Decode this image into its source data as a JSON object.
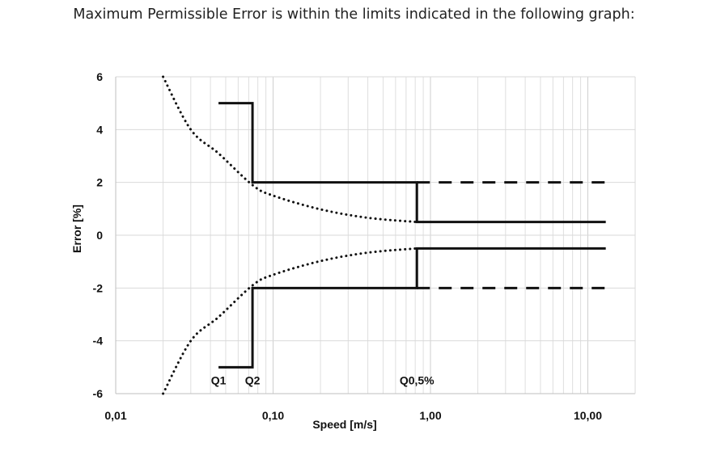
{
  "caption": "Maximum Permissible Error is within the limits indicated in the following graph:",
  "chart_data": {
    "type": "line",
    "title": "",
    "xlabel": "Speed [m/s]",
    "ylabel": "Error [%]",
    "x_scale": "log",
    "xlim": [
      0.01,
      15
    ],
    "ylim": [
      -6,
      6
    ],
    "x_ticks": [
      {
        "value": 0.01,
        "label": "0,01"
      },
      {
        "value": 0.1,
        "label": "0,10"
      },
      {
        "value": 1,
        "label": "1,00"
      },
      {
        "value": 10,
        "label": "10,00"
      }
    ],
    "y_ticks": [
      {
        "value": 6,
        "label": "6"
      },
      {
        "value": 4,
        "label": "4"
      },
      {
        "value": 2,
        "label": "2"
      },
      {
        "value": 0,
        "label": "0"
      },
      {
        "value": -2,
        "label": "-2"
      },
      {
        "value": -4,
        "label": "-4"
      },
      {
        "value": -6,
        "label": "-6"
      }
    ],
    "grid": true,
    "series": [
      {
        "style": "solid",
        "x": [
          0.045,
          0.074,
          0.074,
          0.82,
          0.82,
          13
        ],
        "y": [
          5,
          5,
          2,
          2,
          0.5,
          0.5
        ]
      },
      {
        "style": "solid",
        "x": [
          0.045,
          0.074,
          0.074,
          0.82,
          0.82,
          13
        ],
        "y": [
          -5,
          -5,
          -2,
          -2,
          -0.5,
          -0.5
        ]
      },
      {
        "style": "dashed",
        "x": [
          0.82,
          13
        ],
        "y": [
          2,
          2
        ]
      },
      {
        "style": "dashed",
        "x": [
          0.82,
          13
        ],
        "y": [
          -2,
          -2
        ]
      },
      {
        "style": "dotted",
        "x": [
          0.02,
          0.03,
          0.045,
          0.074,
          0.1,
          0.2,
          0.4,
          0.82
        ],
        "y": [
          6,
          4,
          3.1,
          1.9,
          1.5,
          0.98,
          0.66,
          0.5
        ]
      },
      {
        "style": "dotted",
        "x": [
          0.02,
          0.03,
          0.045,
          0.074,
          0.1,
          0.2,
          0.4,
          0.82
        ],
        "y": [
          -6,
          -4,
          -3.1,
          -1.9,
          -1.5,
          -0.98,
          -0.66,
          -0.5
        ]
      }
    ],
    "annotations": [
      {
        "text": "Q1",
        "x": 0.045,
        "y": -5.5
      },
      {
        "text": "Q2",
        "x": 0.074,
        "y": -5.5
      },
      {
        "text": "Q0,5%",
        "x": 0.82,
        "y": -5.5
      }
    ]
  }
}
